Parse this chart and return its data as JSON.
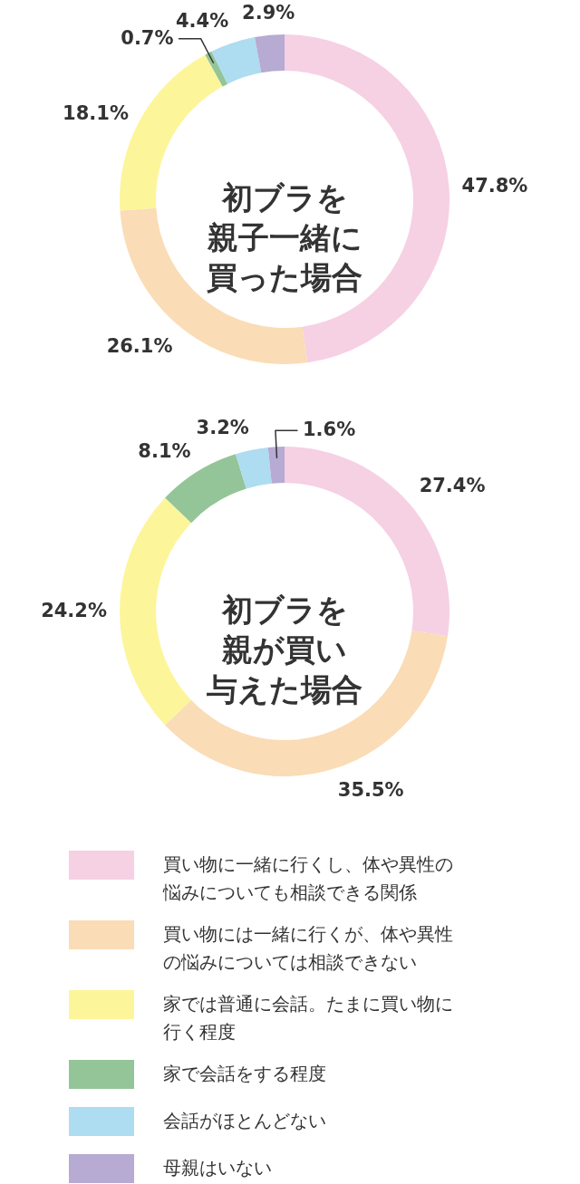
{
  "chart_data": {
    "type": "donut",
    "legend": "bottom",
    "categories": [
      "買い物に一緒に行くし、体や異性の悩みについても相談できる関係",
      "買い物には一緒に行くが、体や異性の悩みについては相談できない",
      "家では普通に会話。たまに買い物に行く程度",
      "家で会話をする程度",
      "会話がほとんどない",
      "母親はいない"
    ],
    "colors": [
      "#f6d0e3",
      "#fadcb6",
      "#fdf59a",
      "#93c598",
      "#aedcf0",
      "#b7aad3"
    ],
    "series": [
      {
        "name": "初ブラを親子一緒に買った場合",
        "values": [
          47.8,
          26.1,
          18.1,
          0.7,
          4.4,
          2.9
        ],
        "value_labels": [
          "47.8%",
          "26.1%",
          "18.1%",
          "0.7%",
          "4.4%",
          "2.9%"
        ]
      },
      {
        "name": "初ブラを親が買い与えた場合",
        "values": [
          27.4,
          35.5,
          24.2,
          8.1,
          3.2,
          1.6
        ],
        "value_labels": [
          "27.4%",
          "35.5%",
          "24.2%",
          "8.1%",
          "3.2%",
          "1.6%"
        ]
      }
    ]
  }
}
